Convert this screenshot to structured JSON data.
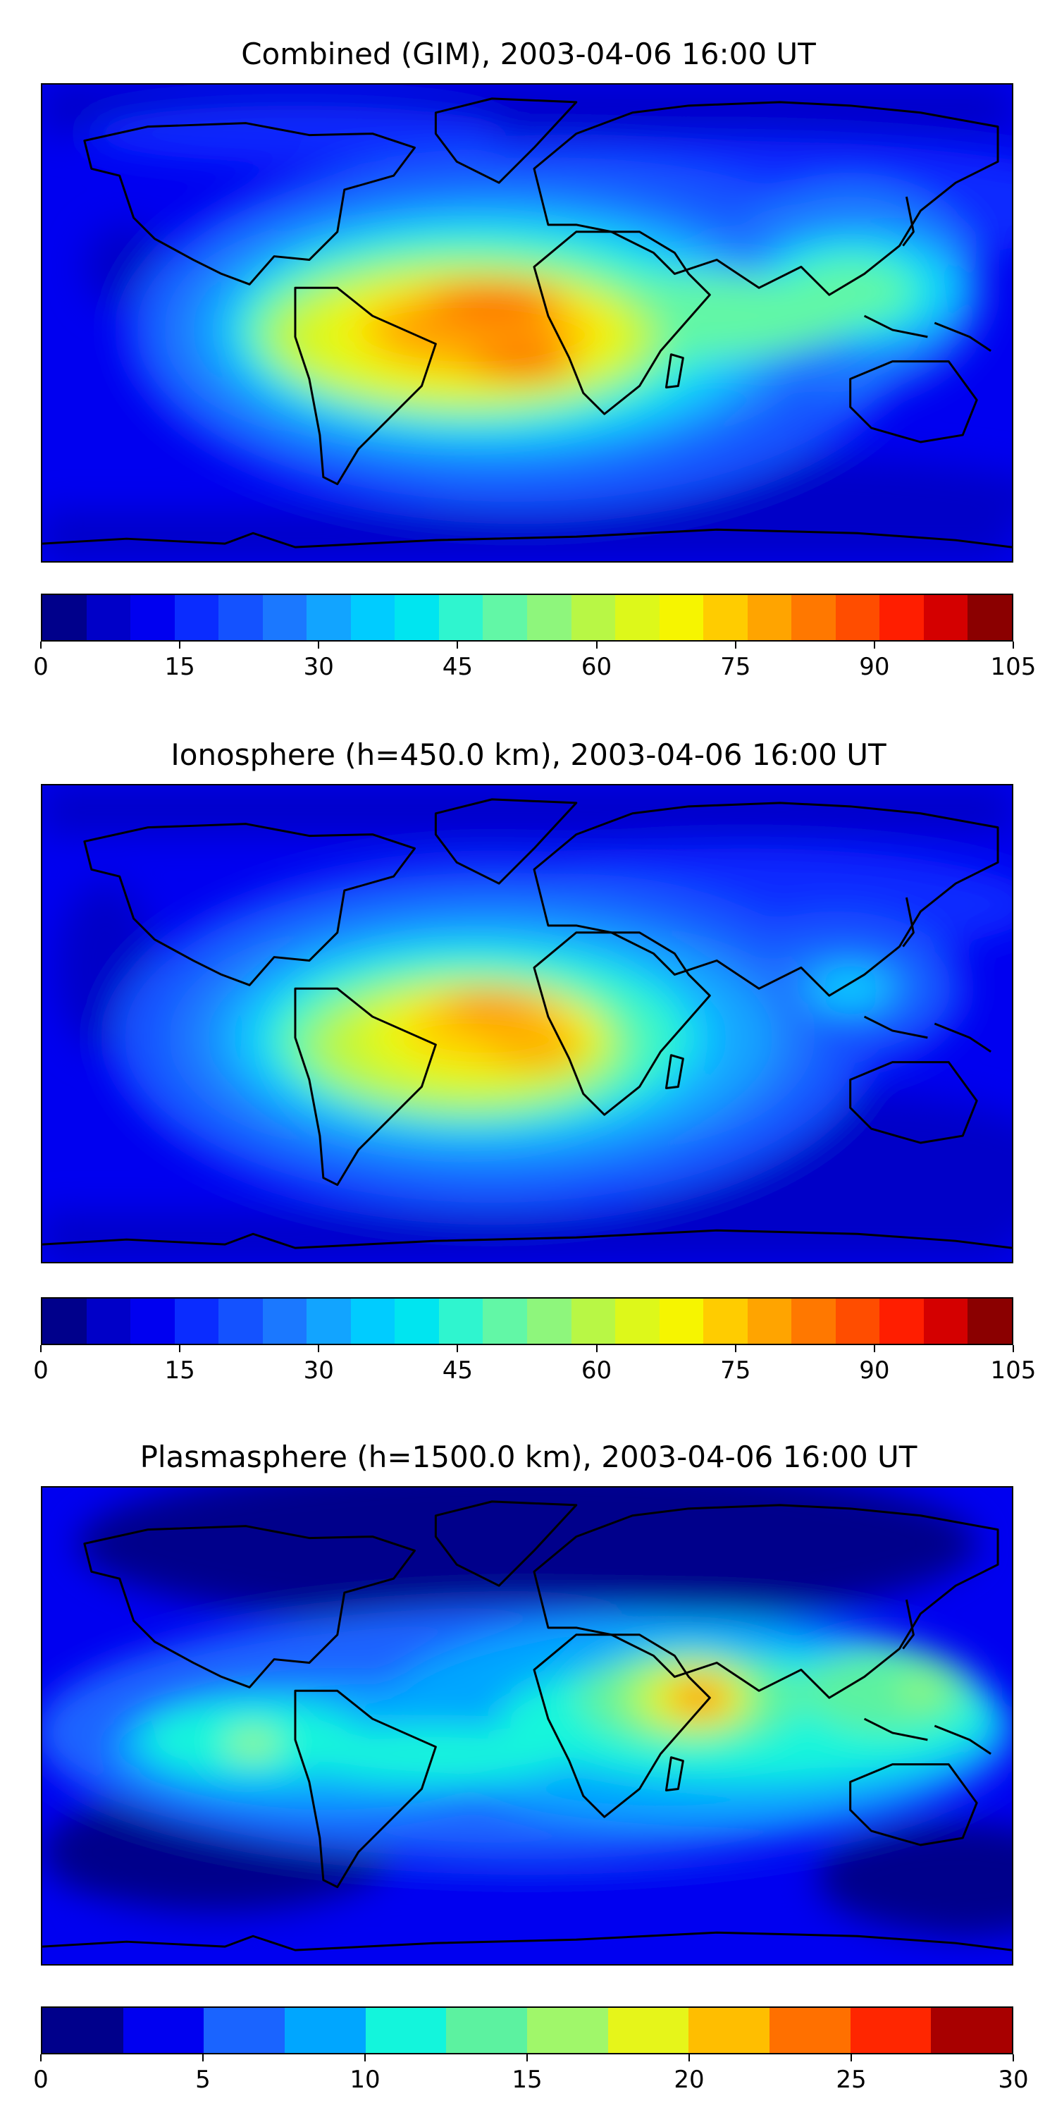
{
  "panels": [
    {
      "title": "Combined (GIM), 2003-04-06 16:00 UT",
      "colorbar": {
        "ticks": [
          "0",
          "15",
          "30",
          "45",
          "60",
          "75",
          "90",
          "105"
        ],
        "colors": [
          "#00008b",
          "#0000c8",
          "#0000f0",
          "#0a2cff",
          "#1452ff",
          "#1b78ff",
          "#12a4ff",
          "#00ccff",
          "#00e5f0",
          "#2ff5cf",
          "#62f7a6",
          "#8ef67c",
          "#b8f745",
          "#ddf81a",
          "#f6f500",
          "#ffcc00",
          "#ffa400",
          "#ff7800",
          "#ff4d00",
          "#ff1e00",
          "#d40000",
          "#8b0000"
        ]
      }
    },
    {
      "title": "Ionosphere  (h=450.0 km), 2003-04-06 16:00 UT",
      "colorbar": {
        "ticks": [
          "0",
          "15",
          "30",
          "45",
          "60",
          "75",
          "90",
          "105"
        ],
        "colors": [
          "#00008b",
          "#0000c8",
          "#0000f0",
          "#0a2cff",
          "#1452ff",
          "#1b78ff",
          "#12a4ff",
          "#00ccff",
          "#00e5f0",
          "#2ff5cf",
          "#62f7a6",
          "#8ef67c",
          "#b8f745",
          "#ddf81a",
          "#f6f500",
          "#ffcc00",
          "#ffa400",
          "#ff7800",
          "#ff4d00",
          "#ff1e00",
          "#d40000",
          "#8b0000"
        ]
      }
    },
    {
      "title": "Plasmasphere (h=1500.0 km), 2003-04-06 16:00 UT",
      "colorbar": {
        "ticks": [
          "0",
          "5",
          "10",
          "15",
          "20",
          "25",
          "30"
        ],
        "colors": [
          "#00008b",
          "#0000f0",
          "#1a64ff",
          "#00a6ff",
          "#13f5dc",
          "#5cf2a0",
          "#a0f76a",
          "#e6f51a",
          "#ffbe00",
          "#ff7000",
          "#ff2600",
          "#a80000"
        ]
      }
    }
  ]
}
